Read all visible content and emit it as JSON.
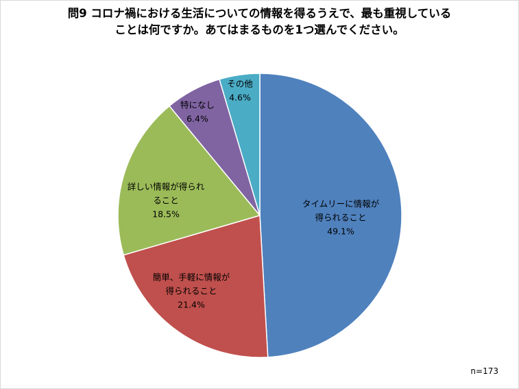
{
  "title_lines": [
    "問9 コロナ禍における生活についての情報を得るうえで、最も重視している",
    "ことは何ですか。あてはまるものを1つ選んでください。"
  ],
  "sample_size_label": "n=173",
  "chart_data": {
    "type": "pie",
    "title": "問9 コロナ禍における生活についての情報を得るうえで、最も重視していることは何ですか。あてはまるものを1つ選んでください。",
    "start_angle_deg": 0,
    "direction": "clockwise",
    "slices": [
      {
        "label_lines": [
          "タイムリーに情報が",
          "得られること"
        ],
        "value": 49.1,
        "value_label": "49.1%",
        "color": "#4f81bd"
      },
      {
        "label_lines": [
          "簡単、手軽に情報が",
          "得られること"
        ],
        "value": 21.4,
        "value_label": "21.4%",
        "color": "#c0504d"
      },
      {
        "label_lines": [
          "詳しい情報が得られ",
          "ること"
        ],
        "value": 18.5,
        "value_label": "18.5%",
        "color": "#9bbb59"
      },
      {
        "label_lines": [
          "特になし"
        ],
        "value": 6.4,
        "value_label": "6.4%",
        "color": "#8064a2"
      },
      {
        "label_lines": [
          "その他"
        ],
        "value": 4.6,
        "value_label": "4.6%",
        "color": "#4bacc6"
      }
    ]
  }
}
